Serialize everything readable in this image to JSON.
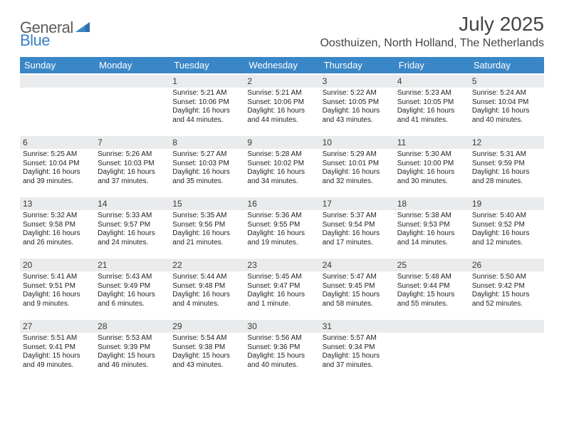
{
  "logo": {
    "word1": "General",
    "word2": "Blue"
  },
  "title": "July 2025",
  "location": "Oosthuizen, North Holland, The Netherlands",
  "colors": {
    "header_bg": "#3a87c7",
    "header_text": "#ffffff",
    "daynum_bg": "#e9ebec",
    "text": "#222222",
    "logo_gray": "#5b5b5b",
    "logo_blue": "#3a7fc4"
  },
  "day_labels": [
    "Sunday",
    "Monday",
    "Tuesday",
    "Wednesday",
    "Thursday",
    "Friday",
    "Saturday"
  ],
  "weeks": [
    [
      null,
      null,
      {
        "n": "1",
        "sr": "Sunrise: 5:21 AM",
        "ss": "Sunset: 10:06 PM",
        "dl": "Daylight: 16 hours and 44 minutes."
      },
      {
        "n": "2",
        "sr": "Sunrise: 5:21 AM",
        "ss": "Sunset: 10:06 PM",
        "dl": "Daylight: 16 hours and 44 minutes."
      },
      {
        "n": "3",
        "sr": "Sunrise: 5:22 AM",
        "ss": "Sunset: 10:05 PM",
        "dl": "Daylight: 16 hours and 43 minutes."
      },
      {
        "n": "4",
        "sr": "Sunrise: 5:23 AM",
        "ss": "Sunset: 10:05 PM",
        "dl": "Daylight: 16 hours and 41 minutes."
      },
      {
        "n": "5",
        "sr": "Sunrise: 5:24 AM",
        "ss": "Sunset: 10:04 PM",
        "dl": "Daylight: 16 hours and 40 minutes."
      }
    ],
    [
      {
        "n": "6",
        "sr": "Sunrise: 5:25 AM",
        "ss": "Sunset: 10:04 PM",
        "dl": "Daylight: 16 hours and 39 minutes."
      },
      {
        "n": "7",
        "sr": "Sunrise: 5:26 AM",
        "ss": "Sunset: 10:03 PM",
        "dl": "Daylight: 16 hours and 37 minutes."
      },
      {
        "n": "8",
        "sr": "Sunrise: 5:27 AM",
        "ss": "Sunset: 10:03 PM",
        "dl": "Daylight: 16 hours and 35 minutes."
      },
      {
        "n": "9",
        "sr": "Sunrise: 5:28 AM",
        "ss": "Sunset: 10:02 PM",
        "dl": "Daylight: 16 hours and 34 minutes."
      },
      {
        "n": "10",
        "sr": "Sunrise: 5:29 AM",
        "ss": "Sunset: 10:01 PM",
        "dl": "Daylight: 16 hours and 32 minutes."
      },
      {
        "n": "11",
        "sr": "Sunrise: 5:30 AM",
        "ss": "Sunset: 10:00 PM",
        "dl": "Daylight: 16 hours and 30 minutes."
      },
      {
        "n": "12",
        "sr": "Sunrise: 5:31 AM",
        "ss": "Sunset: 9:59 PM",
        "dl": "Daylight: 16 hours and 28 minutes."
      }
    ],
    [
      {
        "n": "13",
        "sr": "Sunrise: 5:32 AM",
        "ss": "Sunset: 9:58 PM",
        "dl": "Daylight: 16 hours and 26 minutes."
      },
      {
        "n": "14",
        "sr": "Sunrise: 5:33 AM",
        "ss": "Sunset: 9:57 PM",
        "dl": "Daylight: 16 hours and 24 minutes."
      },
      {
        "n": "15",
        "sr": "Sunrise: 5:35 AM",
        "ss": "Sunset: 9:56 PM",
        "dl": "Daylight: 16 hours and 21 minutes."
      },
      {
        "n": "16",
        "sr": "Sunrise: 5:36 AM",
        "ss": "Sunset: 9:55 PM",
        "dl": "Daylight: 16 hours and 19 minutes."
      },
      {
        "n": "17",
        "sr": "Sunrise: 5:37 AM",
        "ss": "Sunset: 9:54 PM",
        "dl": "Daylight: 16 hours and 17 minutes."
      },
      {
        "n": "18",
        "sr": "Sunrise: 5:38 AM",
        "ss": "Sunset: 9:53 PM",
        "dl": "Daylight: 16 hours and 14 minutes."
      },
      {
        "n": "19",
        "sr": "Sunrise: 5:40 AM",
        "ss": "Sunset: 9:52 PM",
        "dl": "Daylight: 16 hours and 12 minutes."
      }
    ],
    [
      {
        "n": "20",
        "sr": "Sunrise: 5:41 AM",
        "ss": "Sunset: 9:51 PM",
        "dl": "Daylight: 16 hours and 9 minutes."
      },
      {
        "n": "21",
        "sr": "Sunrise: 5:43 AM",
        "ss": "Sunset: 9:49 PM",
        "dl": "Daylight: 16 hours and 6 minutes."
      },
      {
        "n": "22",
        "sr": "Sunrise: 5:44 AM",
        "ss": "Sunset: 9:48 PM",
        "dl": "Daylight: 16 hours and 4 minutes."
      },
      {
        "n": "23",
        "sr": "Sunrise: 5:45 AM",
        "ss": "Sunset: 9:47 PM",
        "dl": "Daylight: 16 hours and 1 minute."
      },
      {
        "n": "24",
        "sr": "Sunrise: 5:47 AM",
        "ss": "Sunset: 9:45 PM",
        "dl": "Daylight: 15 hours and 58 minutes."
      },
      {
        "n": "25",
        "sr": "Sunrise: 5:48 AM",
        "ss": "Sunset: 9:44 PM",
        "dl": "Daylight: 15 hours and 55 minutes."
      },
      {
        "n": "26",
        "sr": "Sunrise: 5:50 AM",
        "ss": "Sunset: 9:42 PM",
        "dl": "Daylight: 15 hours and 52 minutes."
      }
    ],
    [
      {
        "n": "27",
        "sr": "Sunrise: 5:51 AM",
        "ss": "Sunset: 9:41 PM",
        "dl": "Daylight: 15 hours and 49 minutes."
      },
      {
        "n": "28",
        "sr": "Sunrise: 5:53 AM",
        "ss": "Sunset: 9:39 PM",
        "dl": "Daylight: 15 hours and 46 minutes."
      },
      {
        "n": "29",
        "sr": "Sunrise: 5:54 AM",
        "ss": "Sunset: 9:38 PM",
        "dl": "Daylight: 15 hours and 43 minutes."
      },
      {
        "n": "30",
        "sr": "Sunrise: 5:56 AM",
        "ss": "Sunset: 9:36 PM",
        "dl": "Daylight: 15 hours and 40 minutes."
      },
      {
        "n": "31",
        "sr": "Sunrise: 5:57 AM",
        "ss": "Sunset: 9:34 PM",
        "dl": "Daylight: 15 hours and 37 minutes."
      },
      null,
      null
    ]
  ]
}
